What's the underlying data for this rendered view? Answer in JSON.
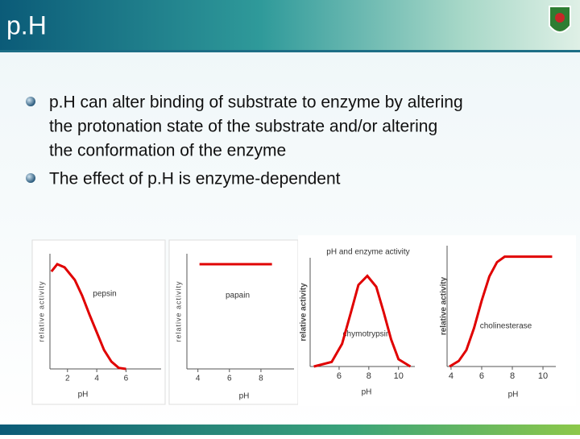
{
  "header": {
    "title": "p.H"
  },
  "bullets": [
    [
      "p.H can alter binding of substrate to enzyme by altering",
      "the protonation state of the substrate and/or altering",
      "the conformation of the enzyme"
    ],
    [
      "The effect of p.H is enzyme-dependent"
    ]
  ],
  "figures": [
    {
      "type": "line",
      "y_label": "relative activity",
      "x_label": "pH",
      "curve_label": "pepsin",
      "color": "#e00000",
      "xlim": [
        0.8,
        8.4
      ],
      "ylim": [
        0,
        1.1
      ],
      "xticks": [
        2,
        4,
        6
      ],
      "x": [
        0.9,
        1.3,
        1.8,
        2.5,
        3.0,
        3.5,
        4.0,
        4.5,
        5.0,
        5.5,
        6.0
      ],
      "values": [
        0.93,
        1.0,
        0.97,
        0.85,
        0.7,
        0.52,
        0.35,
        0.18,
        0.07,
        0.01,
        0
      ]
    },
    {
      "type": "line",
      "y_label": "relative activity",
      "x_label": "pH",
      "curve_label": "papain",
      "color": "#e00000",
      "xlim": [
        3.3,
        10.1
      ],
      "ylim": [
        0,
        1.1
      ],
      "xticks": [
        4,
        6,
        8
      ],
      "x": [
        4.1,
        8.7
      ],
      "values": [
        1,
        1
      ]
    },
    {
      "type": "line",
      "title": "pH and enzyme activity",
      "y_label": "relative activity",
      "x_label": "pH",
      "curve_label": "chymotrypsin",
      "color": "#e00000",
      "xlim": [
        4.05,
        11.1
      ],
      "ylim": [
        0,
        1.2
      ],
      "xticks": [
        6,
        8,
        10
      ],
      "x": [
        4.3,
        5.5,
        6.2,
        6.8,
        7.3,
        7.9,
        8.5,
        9.0,
        9.5,
        10.0,
        10.8
      ],
      "values": [
        0,
        0.05,
        0.25,
        0.6,
        0.9,
        1.0,
        0.88,
        0.6,
        0.3,
        0.08,
        0
      ]
    },
    {
      "type": "line",
      "y_label": "relative activity",
      "x_label": "pH",
      "curve_label": "cholinesterase",
      "color": "#e00000",
      "xlim": [
        3.74,
        10.84
      ],
      "ylim": [
        0,
        1.1
      ],
      "xticks": [
        4,
        6,
        8,
        10
      ],
      "x": [
        3.9,
        4.5,
        5.0,
        5.5,
        6.0,
        6.5,
        7.0,
        7.5,
        8.0,
        10.6
      ],
      "values": [
        0,
        0.05,
        0.15,
        0.35,
        0.6,
        0.82,
        0.95,
        1.0,
        1.0,
        1.0
      ]
    }
  ]
}
